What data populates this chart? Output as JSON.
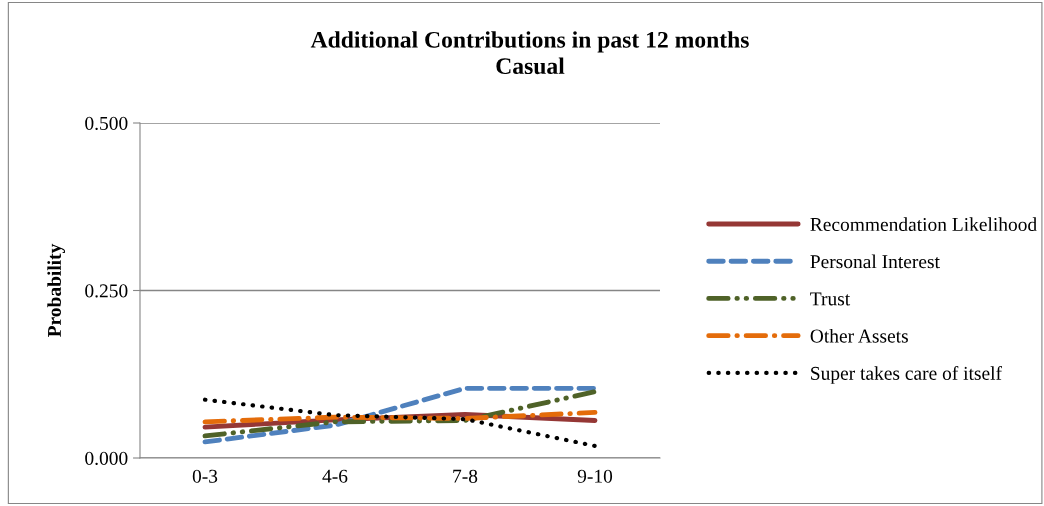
{
  "chart_data": {
    "type": "line",
    "title": "Additional Contributions in past 12 months\nCasual",
    "ylabel": "Probability",
    "categories": [
      "0-3",
      "4-6",
      "7-8",
      "9-10"
    ],
    "series": [
      {
        "name": "Recommendation Likelihood",
        "color": "#953735",
        "line_style": "solid",
        "values": [
          0.046,
          0.057,
          0.065,
          0.056
        ]
      },
      {
        "name": "Personal Interest",
        "color": "#4f81bd",
        "line_style": "dashed",
        "values": [
          0.024,
          0.049,
          0.104,
          0.104
        ]
      },
      {
        "name": "Trust",
        "color": "#4f6228",
        "line_style": "dashdotdot",
        "values": [
          0.033,
          0.054,
          0.056,
          0.099
        ]
      },
      {
        "name": "Other Assets",
        "color": "#e46c0a",
        "line_style": "dashdot",
        "values": [
          0.054,
          0.061,
          0.059,
          0.068
        ]
      },
      {
        "name": "Super takes care of itself",
        "color": "#000000",
        "line_style": "dotted",
        "values": [
          0.087,
          0.064,
          0.058,
          0.018
        ]
      }
    ],
    "ylim": [
      0,
      0.5
    ],
    "yticks": [
      {
        "value": 0,
        "label": "0.000"
      },
      {
        "value": 0.25,
        "label": "0.250"
      },
      {
        "value": 0.5,
        "label": "0.500"
      }
    ],
    "grid": "y",
    "legend": "right",
    "marker": "none"
  }
}
